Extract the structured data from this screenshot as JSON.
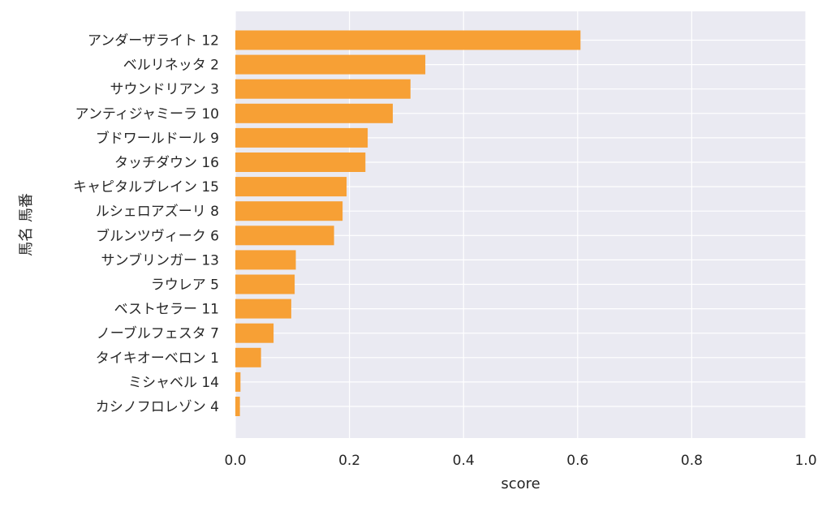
{
  "chart_data": {
    "type": "bar",
    "orientation": "horizontal",
    "title": "",
    "xlabel": "score",
    "ylabel": "馬名 馬番",
    "xlim": [
      0.0,
      1.0
    ],
    "xticks": [
      "0.0",
      "0.2",
      "0.4",
      "0.6",
      "0.8",
      "1.0"
    ],
    "grid": true,
    "categories": [
      "アンダーザライト 12",
      "ベルリネッタ 2",
      "サウンドリアン 3",
      "アンティジャミーラ 10",
      "ブドワールドール 9",
      "タッチダウン 16",
      "キャピタルプレイン 15",
      "ルシェロアズーリ 8",
      "ブルンツヴィーク 6",
      "サンブリンガー 13",
      "ラウレア 5",
      "ベストセラー 11",
      "ノーブルフェスタ 7",
      "タイキオーベロン 1",
      "ミシャベル 14",
      "カシノフロレゾン 4"
    ],
    "values": [
      0.605,
      0.333,
      0.307,
      0.276,
      0.232,
      0.228,
      0.195,
      0.188,
      0.173,
      0.106,
      0.104,
      0.098,
      0.067,
      0.045,
      0.009,
      0.008
    ],
    "colors": {
      "bar": "#f7a035",
      "plot_bg": "#eaeaf2",
      "grid": "#ffffff"
    }
  }
}
